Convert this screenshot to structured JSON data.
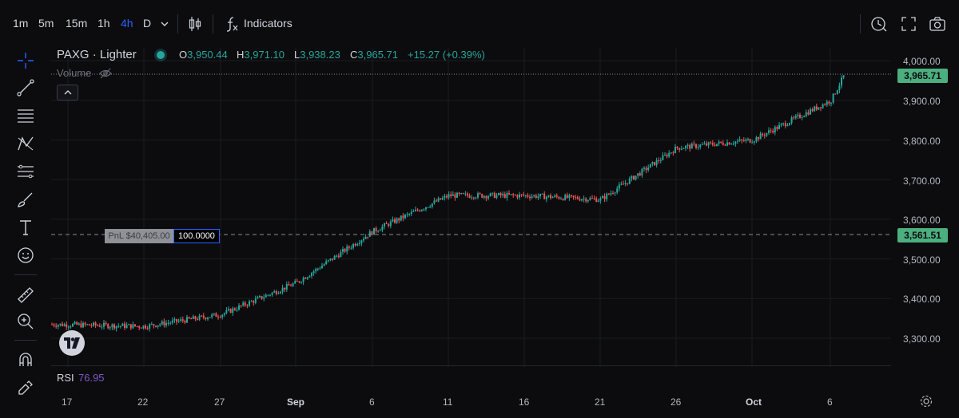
{
  "header": {
    "timeframes": [
      {
        "label": "1m",
        "active": false
      },
      {
        "label": "5m",
        "active": false
      },
      {
        "label": "15m",
        "active": false
      },
      {
        "label": "1h",
        "active": false
      },
      {
        "label": "4h",
        "active": true
      },
      {
        "label": "D",
        "active": false
      }
    ],
    "timeframe_dropdown_icon": "chevron-down-icon",
    "chart_type_icon": "candlestick-icon",
    "indicators_label": "Indicators",
    "indicators_icon": "function-icon",
    "right_icons": [
      "alert-clock-icon",
      "fullscreen-icon",
      "camera-icon"
    ]
  },
  "toolbar": {
    "tools": [
      "crosshair-icon",
      "trend-line-icon",
      "horizontal-lines-icon",
      "pattern-icon",
      "fib-icon",
      "brush-icon",
      "text-icon",
      "emoji-icon",
      "ruler-icon",
      "zoom-in-icon",
      "magnet-icon",
      "lock-draw-icon"
    ]
  },
  "legend": {
    "symbol": "PAXG · Lighter",
    "open_key": "O",
    "open": "3,950.44",
    "high_key": "H",
    "high": "3,971.10",
    "low_key": "L",
    "low": "3,938.23",
    "close_key": "C",
    "close": "3,965.71",
    "change": "+15.27 (+0.39%)",
    "volume_label": "Volume"
  },
  "position": {
    "pnl_label": "PnL $40,405.00",
    "quantity": "100.0000",
    "entry_price_tag": "3,561.51",
    "entry_price": 3561.51
  },
  "price_axis": {
    "ticks": [
      "4,000.00",
      "3,900.00",
      "3,800.00",
      "3,700.00",
      "3,600.00",
      "3,500.00",
      "3,400.00",
      "3,300.00"
    ],
    "last_price_tag": "3,965.71",
    "last_price": 3965.71
  },
  "rsi": {
    "label": "RSI",
    "value": "76.95"
  },
  "time_axis": {
    "ticks": [
      {
        "label": "17",
        "bold": false
      },
      {
        "label": "22",
        "bold": false
      },
      {
        "label": "27",
        "bold": false
      },
      {
        "label": "Sep",
        "bold": true
      },
      {
        "label": "6",
        "bold": false
      },
      {
        "label": "11",
        "bold": false
      },
      {
        "label": "16",
        "bold": false
      },
      {
        "label": "21",
        "bold": false
      },
      {
        "label": "26",
        "bold": false
      },
      {
        "label": "Oct",
        "bold": true
      },
      {
        "label": "6",
        "bold": false
      }
    ]
  },
  "colors": {
    "up": "#26a69a",
    "down": "#ef5350",
    "accent": "#2962ff",
    "background": "#0c0c0f"
  },
  "chart_data": {
    "type": "candlestick",
    "x": [
      "Aug 17",
      "Aug 22",
      "Aug 27",
      "Sep 1",
      "Sep 6",
      "Sep 11",
      "Sep 16",
      "Sep 21",
      "Sep 26",
      "Oct 1",
      "Oct 6",
      "Oct 7"
    ],
    "close": [
      3335,
      3330,
      3360,
      3440,
      3570,
      3660,
      3660,
      3650,
      3780,
      3800,
      3900,
      3965.71
    ],
    "ylim": [
      3250,
      4030
    ]
  }
}
